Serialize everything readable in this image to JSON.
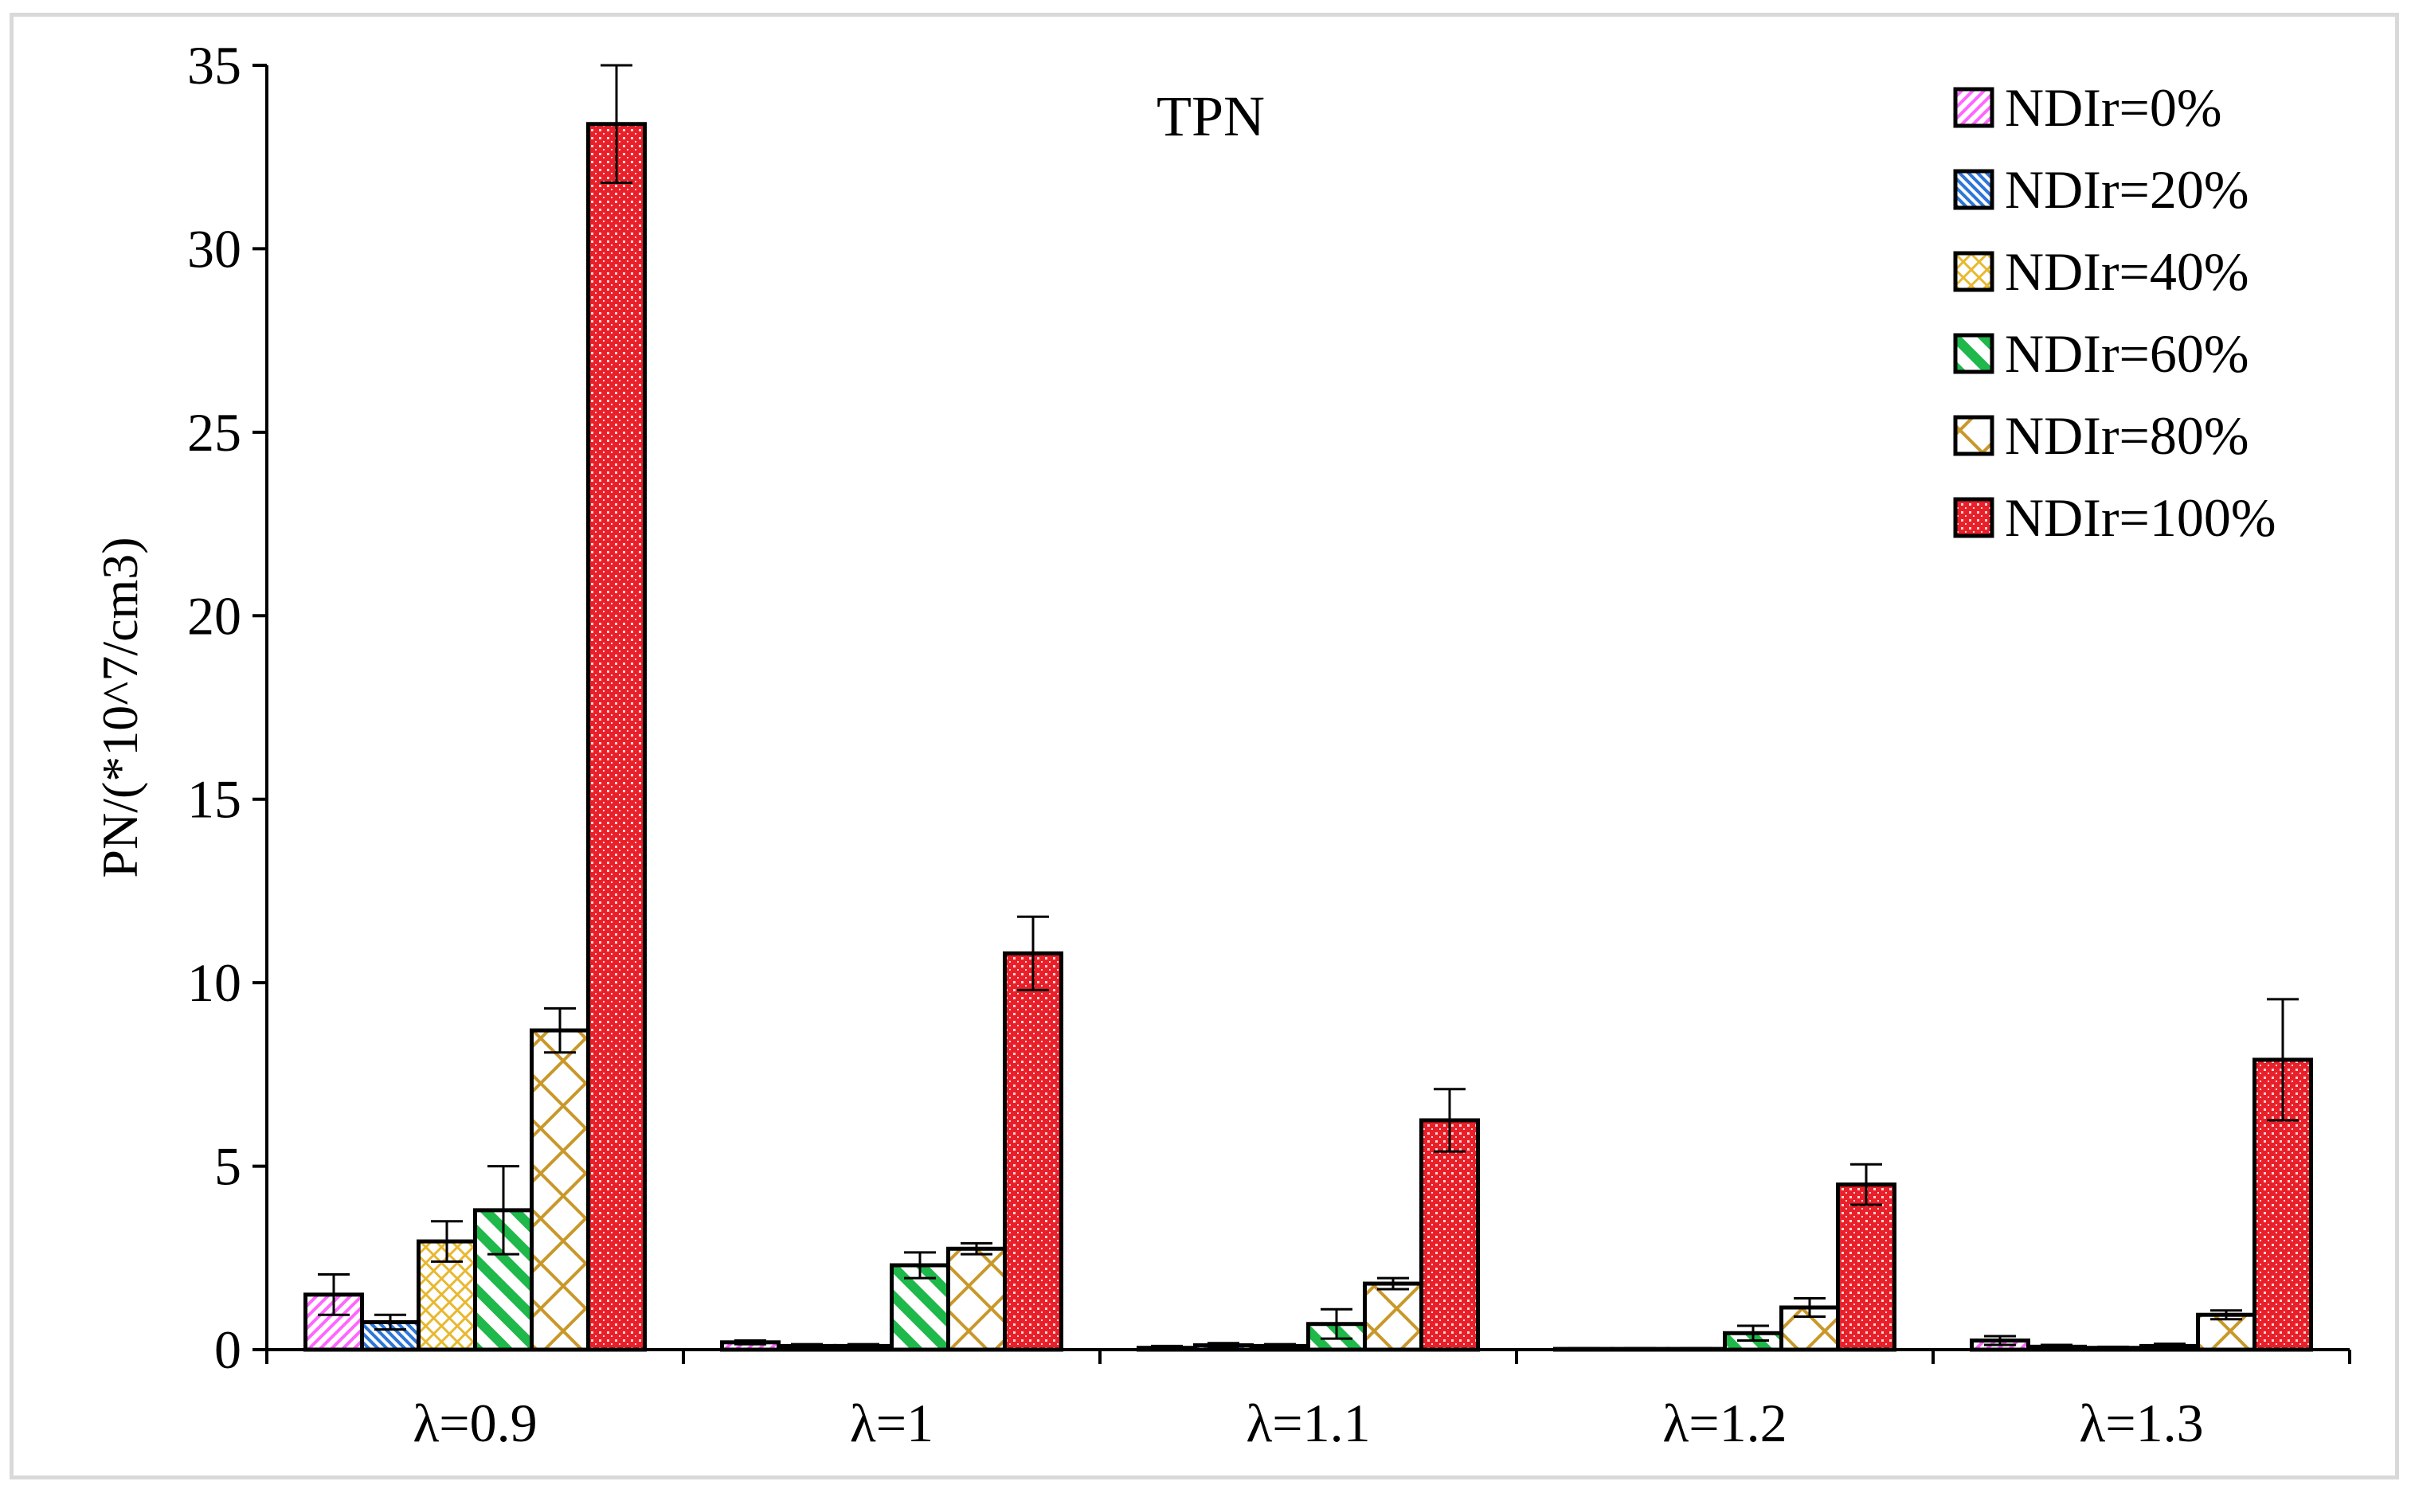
{
  "chart_data": {
    "type": "bar",
    "title": "TPN",
    "ylabel": "PN/(*10^7/cm3)",
    "xlabel": "",
    "ylim": [
      0,
      35
    ],
    "yticks": [
      0,
      5,
      10,
      15,
      20,
      25,
      30,
      35
    ],
    "ytick_labels": [
      "0",
      "5",
      "10",
      "15",
      "20",
      "25",
      "30",
      "35"
    ],
    "categories": [
      "λ=0.9",
      "λ=1",
      "λ=1.1",
      "λ=1.2",
      "λ=1.3"
    ],
    "legend_position": "top-right",
    "grid": false,
    "series": [
      {
        "name": "NDIr=0%",
        "values": [
          1.5,
          0.2,
          0.05,
          0.02,
          0.25
        ],
        "errors": [
          0.55,
          0.05,
          0.05,
          0.02,
          0.12
        ],
        "color": "#ff66ff",
        "pattern": "diag-thin"
      },
      {
        "name": "NDIr=20%",
        "values": [
          0.75,
          0.1,
          0.12,
          0.02,
          0.08
        ],
        "errors": [
          0.2,
          0.05,
          0.06,
          0.02,
          0.05
        ],
        "color": "#2e75d6",
        "pattern": "diag-dense"
      },
      {
        "name": "NDIr=40%",
        "values": [
          2.95,
          0.1,
          0.1,
          0.02,
          0.05
        ],
        "errors": [
          0.55,
          0.05,
          0.05,
          0.02,
          0.03
        ],
        "color": "#e8b830",
        "pattern": "check"
      },
      {
        "name": "NDIr=60%",
        "values": [
          3.8,
          2.3,
          0.7,
          0.45,
          0.1
        ],
        "errors": [
          1.2,
          0.35,
          0.4,
          0.2,
          0.06
        ],
        "color": "#1fb84a",
        "pattern": "diag-wide"
      },
      {
        "name": "NDIr=80%",
        "values": [
          8.7,
          2.75,
          1.8,
          1.15,
          0.95
        ],
        "errors": [
          0.6,
          0.15,
          0.15,
          0.25,
          0.12
        ],
        "color": "#c9982a",
        "pattern": "trellis"
      },
      {
        "name": "NDIr=100%",
        "values": [
          33.4,
          10.8,
          6.25,
          4.5,
          7.9
        ],
        "errors": [
          1.6,
          1.0,
          0.85,
          0.55,
          1.65
        ],
        "color": "#e8202a",
        "pattern": "dots"
      }
    ]
  }
}
